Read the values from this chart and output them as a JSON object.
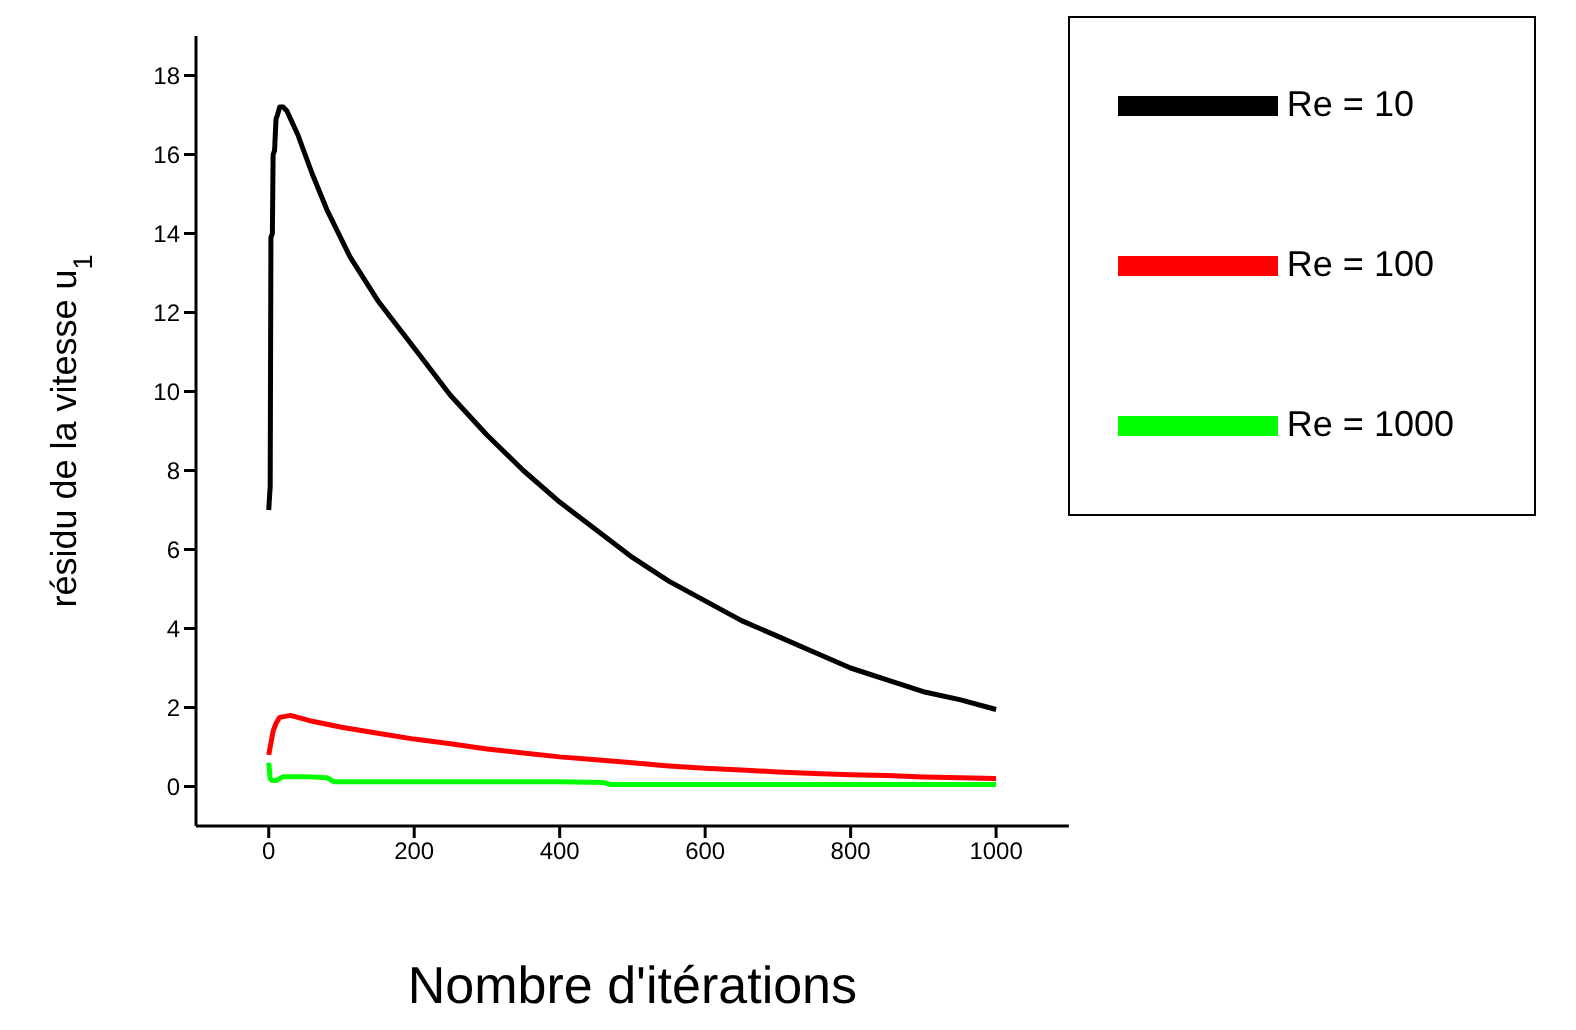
{
  "chart_data": {
    "type": "line",
    "xlabel": "Nombre d'itérations",
    "ylabel": "résidu de la vitesse u$_{1}$",
    "xlim": [
      -100,
      1100
    ],
    "xticks": [
      0,
      200,
      400,
      600,
      800,
      1000
    ],
    "ylim": [
      -1,
      19
    ],
    "yticks": [
      0,
      2,
      4,
      6,
      8,
      10,
      12,
      14,
      16,
      18
    ],
    "grid": false,
    "legend": "top right",
    "marker": "none",
    "line_style": "solid",
    "series": [
      {
        "name": "Re = 10",
        "color": "#000000",
        "x": [
          0,
          2,
          3,
          5,
          6,
          8,
          10,
          12,
          15,
          20,
          25,
          40,
          60,
          80,
          112,
          150,
          200,
          250,
          300,
          350,
          400,
          450,
          500,
          550,
          600,
          650,
          700,
          750,
          800,
          850,
          900,
          950,
          1000
        ],
        "values": [
          7.0,
          7.6,
          13.9,
          14.0,
          16.0,
          16.1,
          16.9,
          17.0,
          17.2,
          17.2,
          17.1,
          16.5,
          15.5,
          14.6,
          13.4,
          12.3,
          11.1,
          9.9,
          8.9,
          8.0,
          7.2,
          6.5,
          5.8,
          5.2,
          4.7,
          4.2,
          3.8,
          3.4,
          3.0,
          2.7,
          2.4,
          2.2,
          1.95
        ]
      },
      {
        "name": "Re = 100",
        "color": "#ff0000",
        "x": [
          0,
          3,
          6,
          10,
          15,
          30,
          60,
          100,
          150,
          200,
          250,
          300,
          350,
          400,
          450,
          500,
          550,
          600,
          650,
          700,
          750,
          800,
          850,
          900,
          950,
          1000
        ],
        "values": [
          0.8,
          1.1,
          1.4,
          1.6,
          1.75,
          1.8,
          1.65,
          1.5,
          1.35,
          1.2,
          1.08,
          0.95,
          0.85,
          0.75,
          0.68,
          0.6,
          0.52,
          0.46,
          0.42,
          0.37,
          0.33,
          0.3,
          0.28,
          0.24,
          0.22,
          0.2
        ]
      },
      {
        "name": "Re = 1000",
        "color": "#00ff00",
        "x": [
          0,
          2,
          5,
          10,
          20,
          50,
          80,
          90,
          200,
          300,
          400,
          460,
          470,
          600,
          800,
          1000
        ],
        "values": [
          0.6,
          0.2,
          0.15,
          0.15,
          0.25,
          0.25,
          0.22,
          0.12,
          0.12,
          0.12,
          0.12,
          0.1,
          0.05,
          0.05,
          0.05,
          0.05
        ]
      }
    ]
  }
}
